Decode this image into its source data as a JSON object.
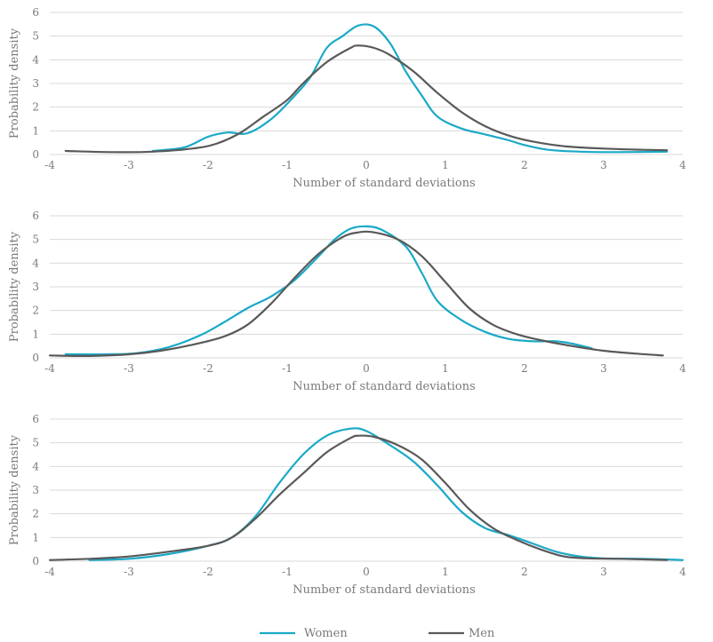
{
  "colors": {
    "women": "#1aa9c8",
    "men": "#595959",
    "grid": "#d9d9d9",
    "text": "#7a7a7a"
  },
  "legend": [
    {
      "name": "Women",
      "color": "#1aa9c8"
    },
    {
      "name": "Men",
      "color": "#595959"
    }
  ],
  "chart_data": [
    {
      "type": "line",
      "xlabel": "Number of standard deviations",
      "ylabel": "Probability density",
      "xlim": [
        -4,
        4
      ],
      "ylim": [
        0,
        6
      ],
      "xticks": [
        -4,
        -3,
        -2,
        -1,
        0,
        1,
        2,
        3,
        4
      ],
      "yticks": [
        0,
        1,
        2,
        3,
        4,
        5,
        6
      ],
      "grid": true,
      "legend": "bottom",
      "series": [
        {
          "name": "Women",
          "points": [
            [
              -2.7,
              0.15
            ],
            [
              -2.3,
              0.3
            ],
            [
              -2.0,
              0.75
            ],
            [
              -1.75,
              0.93
            ],
            [
              -1.5,
              0.9
            ],
            [
              -1.2,
              1.5
            ],
            [
              -0.9,
              2.5
            ],
            [
              -0.7,
              3.3
            ],
            [
              -0.5,
              4.5
            ],
            [
              -0.3,
              5.0
            ],
            [
              -0.1,
              5.45
            ],
            [
              0.1,
              5.4
            ],
            [
              0.3,
              4.7
            ],
            [
              0.5,
              3.5
            ],
            [
              0.7,
              2.5
            ],
            [
              0.9,
              1.6
            ],
            [
              1.2,
              1.1
            ],
            [
              1.5,
              0.85
            ],
            [
              1.8,
              0.6
            ],
            [
              2.0,
              0.4
            ],
            [
              2.3,
              0.2
            ],
            [
              2.7,
              0.12
            ],
            [
              3.2,
              0.1
            ],
            [
              3.8,
              0.12
            ]
          ]
        },
        {
          "name": "Men",
          "points": [
            [
              -3.8,
              0.15
            ],
            [
              -3.2,
              0.1
            ],
            [
              -2.7,
              0.12
            ],
            [
              -2.2,
              0.25
            ],
            [
              -1.9,
              0.45
            ],
            [
              -1.6,
              0.9
            ],
            [
              -1.3,
              1.6
            ],
            [
              -1.0,
              2.3
            ],
            [
              -0.8,
              3.0
            ],
            [
              -0.5,
              3.9
            ],
            [
              -0.2,
              4.5
            ],
            [
              -0.1,
              4.6
            ],
            [
              0.1,
              4.5
            ],
            [
              0.3,
              4.2
            ],
            [
              0.6,
              3.5
            ],
            [
              0.9,
              2.6
            ],
            [
              1.2,
              1.8
            ],
            [
              1.5,
              1.2
            ],
            [
              1.8,
              0.8
            ],
            [
              2.1,
              0.55
            ],
            [
              2.5,
              0.35
            ],
            [
              3.0,
              0.25
            ],
            [
              3.5,
              0.2
            ],
            [
              3.8,
              0.18
            ]
          ]
        }
      ]
    },
    {
      "type": "line",
      "xlabel": "Number of standard deviations",
      "ylabel": "Probability density",
      "xlim": [
        -4,
        4
      ],
      "ylim": [
        0,
        6
      ],
      "xticks": [
        -4,
        -3,
        -2,
        -1,
        0,
        1,
        2,
        3,
        4
      ],
      "yticks": [
        0,
        1,
        2,
        3,
        4,
        5,
        6
      ],
      "grid": true,
      "legend": "bottom",
      "series": [
        {
          "name": "Women",
          "points": [
            [
              -3.8,
              0.15
            ],
            [
              -3.3,
              0.15
            ],
            [
              -2.9,
              0.2
            ],
            [
              -2.5,
              0.45
            ],
            [
              -2.1,
              0.95
            ],
            [
              -1.8,
              1.5
            ],
            [
              -1.5,
              2.1
            ],
            [
              -1.2,
              2.6
            ],
            [
              -0.9,
              3.3
            ],
            [
              -0.6,
              4.3
            ],
            [
              -0.4,
              5.0
            ],
            [
              -0.2,
              5.45
            ],
            [
              0.0,
              5.55
            ],
            [
              0.2,
              5.4
            ],
            [
              0.5,
              4.7
            ],
            [
              0.7,
              3.6
            ],
            [
              0.9,
              2.4
            ],
            [
              1.2,
              1.6
            ],
            [
              1.5,
              1.1
            ],
            [
              1.8,
              0.8
            ],
            [
              2.1,
              0.7
            ],
            [
              2.4,
              0.7
            ],
            [
              2.6,
              0.6
            ],
            [
              2.85,
              0.4
            ]
          ]
        },
        {
          "name": "Men",
          "points": [
            [
              -4.0,
              0.1
            ],
            [
              -3.5,
              0.08
            ],
            [
              -3.0,
              0.15
            ],
            [
              -2.6,
              0.3
            ],
            [
              -2.2,
              0.55
            ],
            [
              -1.8,
              0.9
            ],
            [
              -1.5,
              1.4
            ],
            [
              -1.2,
              2.3
            ],
            [
              -0.9,
              3.4
            ],
            [
              -0.6,
              4.4
            ],
            [
              -0.3,
              5.1
            ],
            [
              -0.1,
              5.3
            ],
            [
              0.1,
              5.3
            ],
            [
              0.4,
              5.0
            ],
            [
              0.7,
              4.3
            ],
            [
              1.0,
              3.2
            ],
            [
              1.3,
              2.1
            ],
            [
              1.6,
              1.4
            ],
            [
              1.9,
              1.0
            ],
            [
              2.2,
              0.75
            ],
            [
              2.6,
              0.5
            ],
            [
              3.0,
              0.3
            ],
            [
              3.4,
              0.18
            ],
            [
              3.75,
              0.1
            ]
          ]
        }
      ]
    },
    {
      "type": "line",
      "xlabel": "Number of standard deviations",
      "ylabel": "Probability density",
      "xlim": [
        -4,
        4
      ],
      "ylim": [
        0,
        6
      ],
      "xticks": [
        -4,
        -3,
        -2,
        -1,
        0,
        1,
        2,
        3,
        4
      ],
      "yticks": [
        0,
        1,
        2,
        3,
        4,
        5,
        6
      ],
      "grid": true,
      "legend": "bottom",
      "series": [
        {
          "name": "Women",
          "points": [
            [
              -3.5,
              0.05
            ],
            [
              -3.0,
              0.1
            ],
            [
              -2.5,
              0.3
            ],
            [
              -2.0,
              0.65
            ],
            [
              -1.7,
              1.0
            ],
            [
              -1.4,
              1.9
            ],
            [
              -1.1,
              3.3
            ],
            [
              -0.8,
              4.5
            ],
            [
              -0.5,
              5.3
            ],
            [
              -0.2,
              5.6
            ],
            [
              0.0,
              5.5
            ],
            [
              0.3,
              4.9
            ],
            [
              0.6,
              4.2
            ],
            [
              0.9,
              3.2
            ],
            [
              1.2,
              2.1
            ],
            [
              1.5,
              1.4
            ],
            [
              1.8,
              1.1
            ],
            [
              2.1,
              0.75
            ],
            [
              2.4,
              0.4
            ],
            [
              2.7,
              0.2
            ],
            [
              3.0,
              0.12
            ],
            [
              3.5,
              0.1
            ],
            [
              4.0,
              0.05
            ]
          ]
        },
        {
          "name": "Men",
          "points": [
            [
              -4.0,
              0.05
            ],
            [
              -3.5,
              0.1
            ],
            [
              -3.0,
              0.2
            ],
            [
              -2.5,
              0.4
            ],
            [
              -2.0,
              0.65
            ],
            [
              -1.7,
              1.0
            ],
            [
              -1.4,
              1.8
            ],
            [
              -1.1,
              2.8
            ],
            [
              -0.8,
              3.7
            ],
            [
              -0.5,
              4.6
            ],
            [
              -0.2,
              5.2
            ],
            [
              -0.1,
              5.3
            ],
            [
              0.1,
              5.25
            ],
            [
              0.4,
              4.9
            ],
            [
              0.7,
              4.3
            ],
            [
              1.0,
              3.3
            ],
            [
              1.3,
              2.2
            ],
            [
              1.6,
              1.4
            ],
            [
              1.9,
              0.9
            ],
            [
              2.2,
              0.5
            ],
            [
              2.5,
              0.2
            ],
            [
              2.8,
              0.12
            ],
            [
              3.2,
              0.1
            ],
            [
              3.8,
              0.05
            ]
          ]
        }
      ]
    }
  ]
}
